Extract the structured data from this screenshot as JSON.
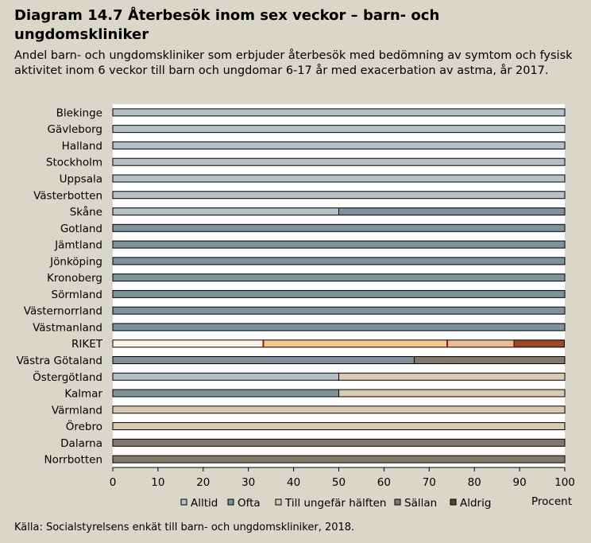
{
  "title": "Diagram 14.7 Återbesök inom sex veckor – barn- och ungdomskliniker",
  "subtitle": "Andel barn- och ungdomskliniker som erbjuder återbesök med bedömning av symtom och fysisk aktivitet inom 6 veckor till barn och ungdomar 6-17 år med exacerbation av astma, år 2017.",
  "source": "Källa: Socialstyrelsens enkät till barn- och ungdomskliniker, 2018.",
  "colors": {
    "background": "#d9d6ca",
    "plot_background": "#ffffff",
    "Alltid": "#b4c2c8",
    "Ofta": "#7d929b",
    "Till ungefär hälften": "#d8cbb2",
    "Sällan": "#83786b",
    "Aldrig": "#5a4534",
    "riket_Alltid": "#fdf4e8",
    "riket_Ofta": "#f4c78a",
    "riket_Till ungefär hälften": "#e9bd9a",
    "riket_Sällan": "#dd8a78",
    "riket_Aldrig": "#9a4a24",
    "riket_separator": "#8a1c1c"
  },
  "chart_data": {
    "type": "bar",
    "orientation": "horizontal",
    "stacked": true,
    "categories": [
      "Blekinge",
      "Gävleborg",
      "Halland",
      "Stockholm",
      "Uppsala",
      "Västerbotten",
      "Skåne",
      "Gotland",
      "Jämtland",
      "Jönköping",
      "Kronoberg",
      "Sörmland",
      "Västernorrland",
      "Västmanland",
      "RIKET",
      "Västra Götaland",
      "Östergötland",
      "Kalmar",
      "Värmland",
      "Örebro",
      "Dalarna",
      "Norrbotten"
    ],
    "series": [
      {
        "name": "Alltid",
        "values": [
          100,
          100,
          100,
          100,
          100,
          100,
          50,
          0,
          0,
          0,
          0,
          0,
          0,
          0,
          33.3,
          0,
          50,
          0,
          0,
          0,
          0,
          0
        ]
      },
      {
        "name": "Ofta",
        "values": [
          0,
          0,
          0,
          0,
          0,
          0,
          50,
          100,
          100,
          100,
          100,
          100,
          100,
          100,
          40.7,
          66.7,
          0,
          50,
          0,
          0,
          0,
          0
        ]
      },
      {
        "name": "Till ungefär hälften",
        "values": [
          0,
          0,
          0,
          0,
          0,
          0,
          0,
          0,
          0,
          0,
          0,
          0,
          0,
          0,
          14.8,
          0,
          50,
          50,
          100,
          100,
          0,
          0
        ]
      },
      {
        "name": "Sällan",
        "values": [
          0,
          0,
          0,
          0,
          0,
          0,
          0,
          0,
          0,
          0,
          0,
          0,
          0,
          0,
          0,
          33.3,
          0,
          0,
          0,
          0,
          100,
          100
        ]
      },
      {
        "name": "Aldrig",
        "values": [
          0,
          0,
          0,
          0,
          0,
          0,
          0,
          0,
          0,
          0,
          0,
          0,
          0,
          0,
          11.1,
          0,
          0,
          0,
          0,
          0,
          0,
          0
        ]
      }
    ],
    "highlight_category": "RIKET",
    "xlabel": "Procent",
    "xlim": [
      0,
      100
    ],
    "xticks": [
      0,
      10,
      20,
      30,
      40,
      50,
      60,
      70,
      80,
      90,
      100
    ],
    "grid": false,
    "legend_position": "bottom"
  }
}
